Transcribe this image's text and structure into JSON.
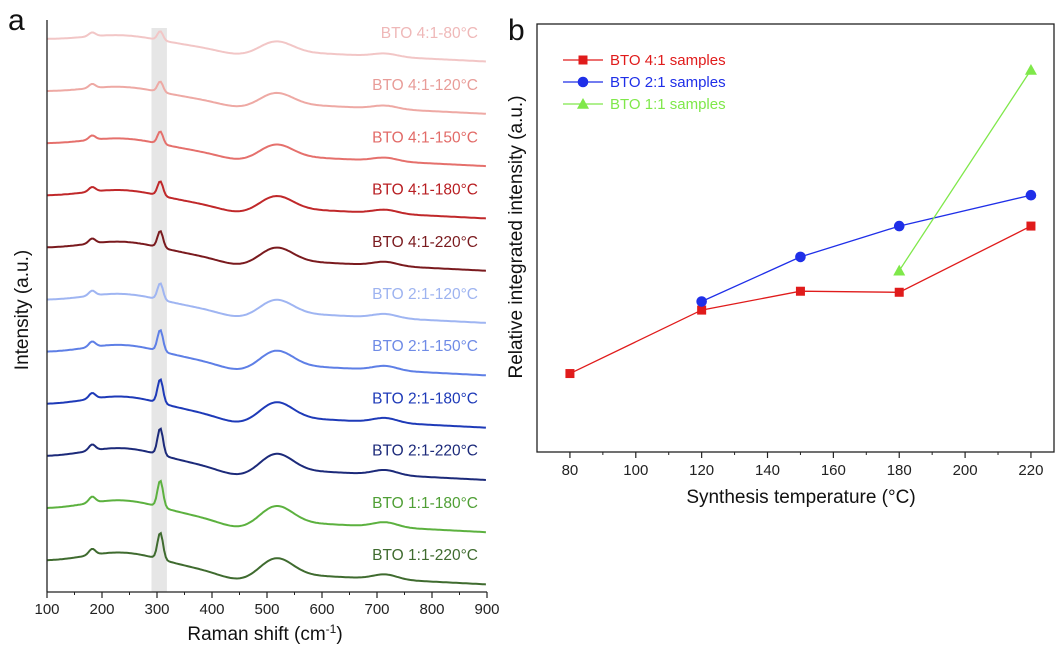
{
  "panels": {
    "a": "a",
    "b": "b"
  },
  "chart_data": [
    {
      "type": "line",
      "panel": "a",
      "xlabel": "Raman shift (cm",
      "xlabel_sup": "-1",
      "xlabel_suffix": ")",
      "ylabel": "Intensity (a.u.)",
      "xlim": [
        100,
        900
      ],
      "x_ticks": [
        100,
        200,
        300,
        400,
        500,
        600,
        700,
        800,
        900
      ],
      "y_ticks_shown": false,
      "highlight_band": [
        290,
        318
      ],
      "offset_stacked": true,
      "series": [
        {
          "name": "BTO 4:1-80°C",
          "color": "#f2c6c6",
          "y_offset_au": 11,
          "height_au": 0.15,
          "peaks": [
            {
              "x": 303,
              "h": 0.0
            }
          ],
          "label_color": "#efb8b8"
        },
        {
          "name": "BTO 4:1-120°C",
          "color": "#eea9a4",
          "y_offset_au": 10,
          "height_au": 0.2,
          "label_color": "#e89c98"
        },
        {
          "name": "BTO 4:1-150°C",
          "color": "#e5706c",
          "y_offset_au": 9,
          "height_au": 0.25,
          "label_color": "#e26b68"
        },
        {
          "name": "BTO 4:1-180°C",
          "color": "#c0282a",
          "y_offset_au": 8,
          "height_au": 0.3,
          "label_color": "#b81e22"
        },
        {
          "name": "BTO 4:1-220°C",
          "color": "#7a1a1e",
          "y_offset_au": 7,
          "height_au": 0.35,
          "label_color": "#7a1a1e"
        },
        {
          "name": "BTO 2:1-120°C",
          "color": "#9fb5f2",
          "y_offset_au": 6,
          "height_au": 0.35,
          "label_color": "#9db3f0"
        },
        {
          "name": "BTO 2:1-150°C",
          "color": "#5e7fe6",
          "y_offset_au": 5,
          "height_au": 0.45,
          "label_color": "#6f8be6"
        },
        {
          "name": "BTO 2:1-180°C",
          "color": "#1e3ab8",
          "y_offset_au": 4,
          "height_au": 0.5,
          "label_color": "#1e3ab8"
        },
        {
          "name": "BTO 2:1-220°C",
          "color": "#1c2a7a",
          "y_offset_au": 3,
          "height_au": 0.55,
          "label_color": "#1c2a7a"
        },
        {
          "name": "BTO 1:1-180°C",
          "color": "#5cb13f",
          "y_offset_au": 2,
          "height_au": 0.55,
          "label_color": "#4f9f35"
        },
        {
          "name": "BTO 1:1-220°C",
          "color": "#3f6b2f",
          "y_offset_au": 1,
          "height_au": 0.55,
          "label_color": "#3f6b2f"
        }
      ]
    },
    {
      "type": "line",
      "panel": "b",
      "xlabel": "Synthesis temperature (°C)",
      "ylabel": "Relative integrated intensity (a.u.)",
      "xlim": [
        70,
        227
      ],
      "ylim": [
        0,
        1
      ],
      "x_ticks": [
        80,
        100,
        120,
        140,
        160,
        180,
        200,
        220
      ],
      "y_ticks_shown": false,
      "legend_position": "top-left",
      "series": [
        {
          "name": "BTO 4:1 samples",
          "color": "#e01b1b",
          "marker": "square",
          "x": [
            80,
            120,
            150,
            180,
            220
          ],
          "y": [
            0.115,
            0.3,
            0.355,
            0.352,
            0.545
          ]
        },
        {
          "name": "BTO 2:1 samples",
          "color": "#1f2fe8",
          "marker": "circle",
          "x": [
            120,
            150,
            180,
            220
          ],
          "y": [
            0.325,
            0.455,
            0.545,
            0.635
          ]
        },
        {
          "name": "BTO 1:1 samples",
          "color": "#7fe84a",
          "marker": "triangle",
          "x": [
            180,
            220
          ],
          "y": [
            0.415,
            1.0
          ]
        }
      ]
    }
  ]
}
